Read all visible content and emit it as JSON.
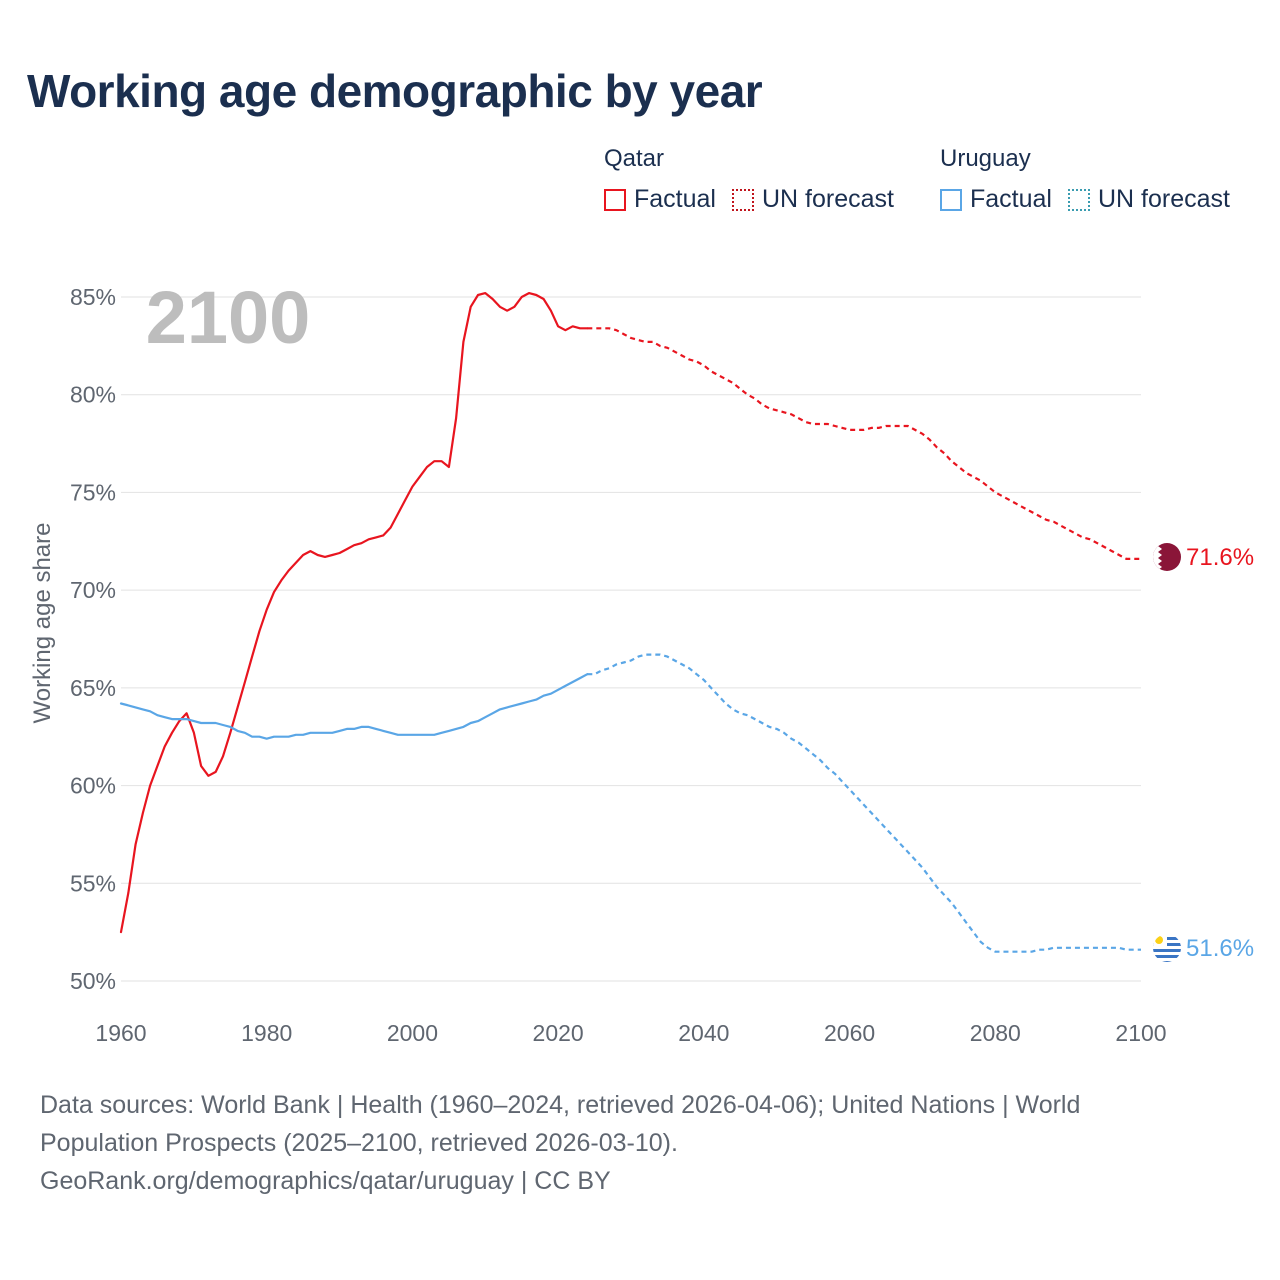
{
  "title": "Working age demographic by year",
  "legend": {
    "qatar": {
      "country": "Qatar",
      "factual": "Factual",
      "forecast": "UN forecast",
      "color": "#e8151f",
      "forecast_color": "#c0141c"
    },
    "uruguay": {
      "country": "Uruguay",
      "factual": "Factual",
      "forecast": "UN forecast",
      "color": "#5aa6e6",
      "forecast_color": "#3a9cb0"
    }
  },
  "sources": {
    "line1": "Data sources: World Bank | Health (1960–2024, retrieved 2026-04-06); United Nations | World",
    "line2": "Population Prospects (2025–2100, retrieved 2026-03-10).",
    "line3": "GeoRank.org/demographics/qatar/uruguay | CC BY"
  },
  "chart_data": {
    "type": "line",
    "year_watermark": "2100",
    "ylabel": "Working age share",
    "xlabel": "",
    "xlim": [
      1960,
      2100
    ],
    "ylim": [
      50,
      85
    ],
    "x_ticks": [
      "1960",
      "1980",
      "2000",
      "2020",
      "2040",
      "2060",
      "2080",
      "2100"
    ],
    "y_ticks": [
      "50%",
      "55%",
      "60%",
      "65%",
      "70%",
      "75%",
      "80%",
      "85%"
    ],
    "end_labels": {
      "qatar": "71.6%",
      "uruguay": "51.6%"
    },
    "forecast_start": 2024,
    "series": [
      {
        "name": "Qatar",
        "color": "#e8151f",
        "points": [
          [
            1960,
            52.5
          ],
          [
            1961,
            54.5
          ],
          [
            1962,
            57.0
          ],
          [
            1963,
            58.6
          ],
          [
            1964,
            60.0
          ],
          [
            1965,
            61.0
          ],
          [
            1966,
            62.0
          ],
          [
            1967,
            62.7
          ],
          [
            1968,
            63.3
          ],
          [
            1969,
            63.7
          ],
          [
            1970,
            62.7
          ],
          [
            1971,
            61.0
          ],
          [
            1972,
            60.5
          ],
          [
            1973,
            60.7
          ],
          [
            1974,
            61.5
          ],
          [
            1975,
            62.7
          ],
          [
            1976,
            64.0
          ],
          [
            1977,
            65.3
          ],
          [
            1978,
            66.6
          ],
          [
            1979,
            67.9
          ],
          [
            1980,
            69.0
          ],
          [
            1981,
            69.9
          ],
          [
            1982,
            70.5
          ],
          [
            1983,
            71.0
          ],
          [
            1984,
            71.4
          ],
          [
            1985,
            71.8
          ],
          [
            1986,
            72.0
          ],
          [
            1987,
            71.8
          ],
          [
            1988,
            71.7
          ],
          [
            1989,
            71.8
          ],
          [
            1990,
            71.9
          ],
          [
            1991,
            72.1
          ],
          [
            1992,
            72.3
          ],
          [
            1993,
            72.4
          ],
          [
            1994,
            72.6
          ],
          [
            1995,
            72.7
          ],
          [
            1996,
            72.8
          ],
          [
            1997,
            73.2
          ],
          [
            1998,
            73.9
          ],
          [
            1999,
            74.6
          ],
          [
            2000,
            75.3
          ],
          [
            2001,
            75.8
          ],
          [
            2002,
            76.3
          ],
          [
            2003,
            76.6
          ],
          [
            2004,
            76.6
          ],
          [
            2005,
            76.3
          ],
          [
            2006,
            78.8
          ],
          [
            2007,
            82.7
          ],
          [
            2008,
            84.5
          ],
          [
            2009,
            85.1
          ],
          [
            2010,
            85.2
          ],
          [
            2011,
            84.9
          ],
          [
            2012,
            84.5
          ],
          [
            2013,
            84.3
          ],
          [
            2014,
            84.5
          ],
          [
            2015,
            85.0
          ],
          [
            2016,
            85.2
          ],
          [
            2017,
            85.1
          ],
          [
            2018,
            84.9
          ],
          [
            2019,
            84.3
          ],
          [
            2020,
            83.5
          ],
          [
            2021,
            83.3
          ],
          [
            2022,
            83.5
          ],
          [
            2023,
            83.4
          ],
          [
            2024,
            83.4
          ],
          [
            2025,
            83.4
          ],
          [
            2026,
            83.4
          ],
          [
            2027,
            83.4
          ],
          [
            2028,
            83.3
          ],
          [
            2029,
            83.1
          ],
          [
            2030,
            82.9
          ],
          [
            2031,
            82.8
          ],
          [
            2032,
            82.7
          ],
          [
            2033,
            82.7
          ],
          [
            2034,
            82.5
          ],
          [
            2035,
            82.4
          ],
          [
            2036,
            82.2
          ],
          [
            2037,
            82.0
          ],
          [
            2038,
            81.8
          ],
          [
            2039,
            81.7
          ],
          [
            2040,
            81.5
          ],
          [
            2041,
            81.2
          ],
          [
            2042,
            81.0
          ],
          [
            2043,
            80.8
          ],
          [
            2044,
            80.6
          ],
          [
            2045,
            80.3
          ],
          [
            2046,
            80.0
          ],
          [
            2047,
            79.8
          ],
          [
            2048,
            79.5
          ],
          [
            2049,
            79.3
          ],
          [
            2050,
            79.2
          ],
          [
            2051,
            79.1
          ],
          [
            2052,
            79.0
          ],
          [
            2053,
            78.8
          ],
          [
            2054,
            78.6
          ],
          [
            2055,
            78.5
          ],
          [
            2056,
            78.5
          ],
          [
            2057,
            78.5
          ],
          [
            2058,
            78.4
          ],
          [
            2059,
            78.3
          ],
          [
            2060,
            78.2
          ],
          [
            2061,
            78.2
          ],
          [
            2062,
            78.2
          ],
          [
            2063,
            78.3
          ],
          [
            2064,
            78.3
          ],
          [
            2065,
            78.4
          ],
          [
            2066,
            78.4
          ],
          [
            2067,
            78.4
          ],
          [
            2068,
            78.4
          ],
          [
            2069,
            78.2
          ],
          [
            2070,
            78.0
          ],
          [
            2071,
            77.7
          ],
          [
            2072,
            77.3
          ],
          [
            2073,
            77.0
          ],
          [
            2074,
            76.6
          ],
          [
            2075,
            76.3
          ],
          [
            2076,
            76.0
          ],
          [
            2077,
            75.8
          ],
          [
            2078,
            75.6
          ],
          [
            2079,
            75.3
          ],
          [
            2080,
            75.0
          ],
          [
            2081,
            74.8
          ],
          [
            2082,
            74.6
          ],
          [
            2083,
            74.4
          ],
          [
            2084,
            74.2
          ],
          [
            2085,
            74.0
          ],
          [
            2086,
            73.8
          ],
          [
            2087,
            73.6
          ],
          [
            2088,
            73.5
          ],
          [
            2089,
            73.3
          ],
          [
            2090,
            73.1
          ],
          [
            2091,
            72.9
          ],
          [
            2092,
            72.7
          ],
          [
            2093,
            72.6
          ],
          [
            2094,
            72.4
          ],
          [
            2095,
            72.2
          ],
          [
            2096,
            72.0
          ],
          [
            2097,
            71.8
          ],
          [
            2098,
            71.6
          ],
          [
            2099,
            71.6
          ],
          [
            2100,
            71.6
          ]
        ]
      },
      {
        "name": "Uruguay",
        "color": "#5aa6e6",
        "points": [
          [
            1960,
            64.2
          ],
          [
            1961,
            64.1
          ],
          [
            1962,
            64.0
          ],
          [
            1963,
            63.9
          ],
          [
            1964,
            63.8
          ],
          [
            1965,
            63.6
          ],
          [
            1966,
            63.5
          ],
          [
            1967,
            63.4
          ],
          [
            1968,
            63.4
          ],
          [
            1969,
            63.4
          ],
          [
            1970,
            63.3
          ],
          [
            1971,
            63.2
          ],
          [
            1972,
            63.2
          ],
          [
            1973,
            63.2
          ],
          [
            1974,
            63.1
          ],
          [
            1975,
            63.0
          ],
          [
            1976,
            62.8
          ],
          [
            1977,
            62.7
          ],
          [
            1978,
            62.5
          ],
          [
            1979,
            62.5
          ],
          [
            1980,
            62.4
          ],
          [
            1981,
            62.5
          ],
          [
            1982,
            62.5
          ],
          [
            1983,
            62.5
          ],
          [
            1984,
            62.6
          ],
          [
            1985,
            62.6
          ],
          [
            1986,
            62.7
          ],
          [
            1987,
            62.7
          ],
          [
            1988,
            62.7
          ],
          [
            1989,
            62.7
          ],
          [
            1990,
            62.8
          ],
          [
            1991,
            62.9
          ],
          [
            1992,
            62.9
          ],
          [
            1993,
            63.0
          ],
          [
            1994,
            63.0
          ],
          [
            1995,
            62.9
          ],
          [
            1996,
            62.8
          ],
          [
            1997,
            62.7
          ],
          [
            1998,
            62.6
          ],
          [
            1999,
            62.6
          ],
          [
            2000,
            62.6
          ],
          [
            2001,
            62.6
          ],
          [
            2002,
            62.6
          ],
          [
            2003,
            62.6
          ],
          [
            2004,
            62.7
          ],
          [
            2005,
            62.8
          ],
          [
            2006,
            62.9
          ],
          [
            2007,
            63.0
          ],
          [
            2008,
            63.2
          ],
          [
            2009,
            63.3
          ],
          [
            2010,
            63.5
          ],
          [
            2011,
            63.7
          ],
          [
            2012,
            63.9
          ],
          [
            2013,
            64.0
          ],
          [
            2014,
            64.1
          ],
          [
            2015,
            64.2
          ],
          [
            2016,
            64.3
          ],
          [
            2017,
            64.4
          ],
          [
            2018,
            64.6
          ],
          [
            2019,
            64.7
          ],
          [
            2020,
            64.9
          ],
          [
            2021,
            65.1
          ],
          [
            2022,
            65.3
          ],
          [
            2023,
            65.5
          ],
          [
            2024,
            65.7
          ],
          [
            2025,
            65.7
          ],
          [
            2026,
            65.9
          ],
          [
            2027,
            66.0
          ],
          [
            2028,
            66.2
          ],
          [
            2029,
            66.3
          ],
          [
            2030,
            66.4
          ],
          [
            2031,
            66.6
          ],
          [
            2032,
            66.7
          ],
          [
            2033,
            66.7
          ],
          [
            2034,
            66.7
          ],
          [
            2035,
            66.6
          ],
          [
            2036,
            66.4
          ],
          [
            2037,
            66.2
          ],
          [
            2038,
            66.0
          ],
          [
            2039,
            65.7
          ],
          [
            2040,
            65.4
          ],
          [
            2041,
            65.0
          ],
          [
            2042,
            64.6
          ],
          [
            2043,
            64.2
          ],
          [
            2044,
            63.9
          ],
          [
            2045,
            63.7
          ],
          [
            2046,
            63.6
          ],
          [
            2047,
            63.4
          ],
          [
            2048,
            63.2
          ],
          [
            2049,
            63.0
          ],
          [
            2050,
            62.9
          ],
          [
            2051,
            62.7
          ],
          [
            2052,
            62.4
          ],
          [
            2053,
            62.2
          ],
          [
            2054,
            61.9
          ],
          [
            2055,
            61.6
          ],
          [
            2056,
            61.3
          ],
          [
            2057,
            60.9
          ],
          [
            2058,
            60.6
          ],
          [
            2059,
            60.2
          ],
          [
            2060,
            59.8
          ],
          [
            2061,
            59.4
          ],
          [
            2062,
            59.0
          ],
          [
            2063,
            58.6
          ],
          [
            2064,
            58.2
          ],
          [
            2065,
            57.8
          ],
          [
            2066,
            57.4
          ],
          [
            2067,
            57.0
          ],
          [
            2068,
            56.6
          ],
          [
            2069,
            56.2
          ],
          [
            2070,
            55.8
          ],
          [
            2071,
            55.3
          ],
          [
            2072,
            54.8
          ],
          [
            2073,
            54.4
          ],
          [
            2074,
            54.0
          ],
          [
            2075,
            53.5
          ],
          [
            2076,
            53.0
          ],
          [
            2077,
            52.5
          ],
          [
            2078,
            52.0
          ],
          [
            2079,
            51.7
          ],
          [
            2080,
            51.5
          ],
          [
            2081,
            51.5
          ],
          [
            2082,
            51.5
          ],
          [
            2083,
            51.5
          ],
          [
            2084,
            51.5
          ],
          [
            2085,
            51.5
          ],
          [
            2086,
            51.6
          ],
          [
            2087,
            51.6
          ],
          [
            2088,
            51.7
          ],
          [
            2089,
            51.7
          ],
          [
            2090,
            51.7
          ],
          [
            2091,
            51.7
          ],
          [
            2092,
            51.7
          ],
          [
            2093,
            51.7
          ],
          [
            2094,
            51.7
          ],
          [
            2095,
            51.7
          ],
          [
            2096,
            51.7
          ],
          [
            2097,
            51.7
          ],
          [
            2098,
            51.6
          ],
          [
            2099,
            51.6
          ],
          [
            2100,
            51.6
          ]
        ]
      }
    ]
  }
}
